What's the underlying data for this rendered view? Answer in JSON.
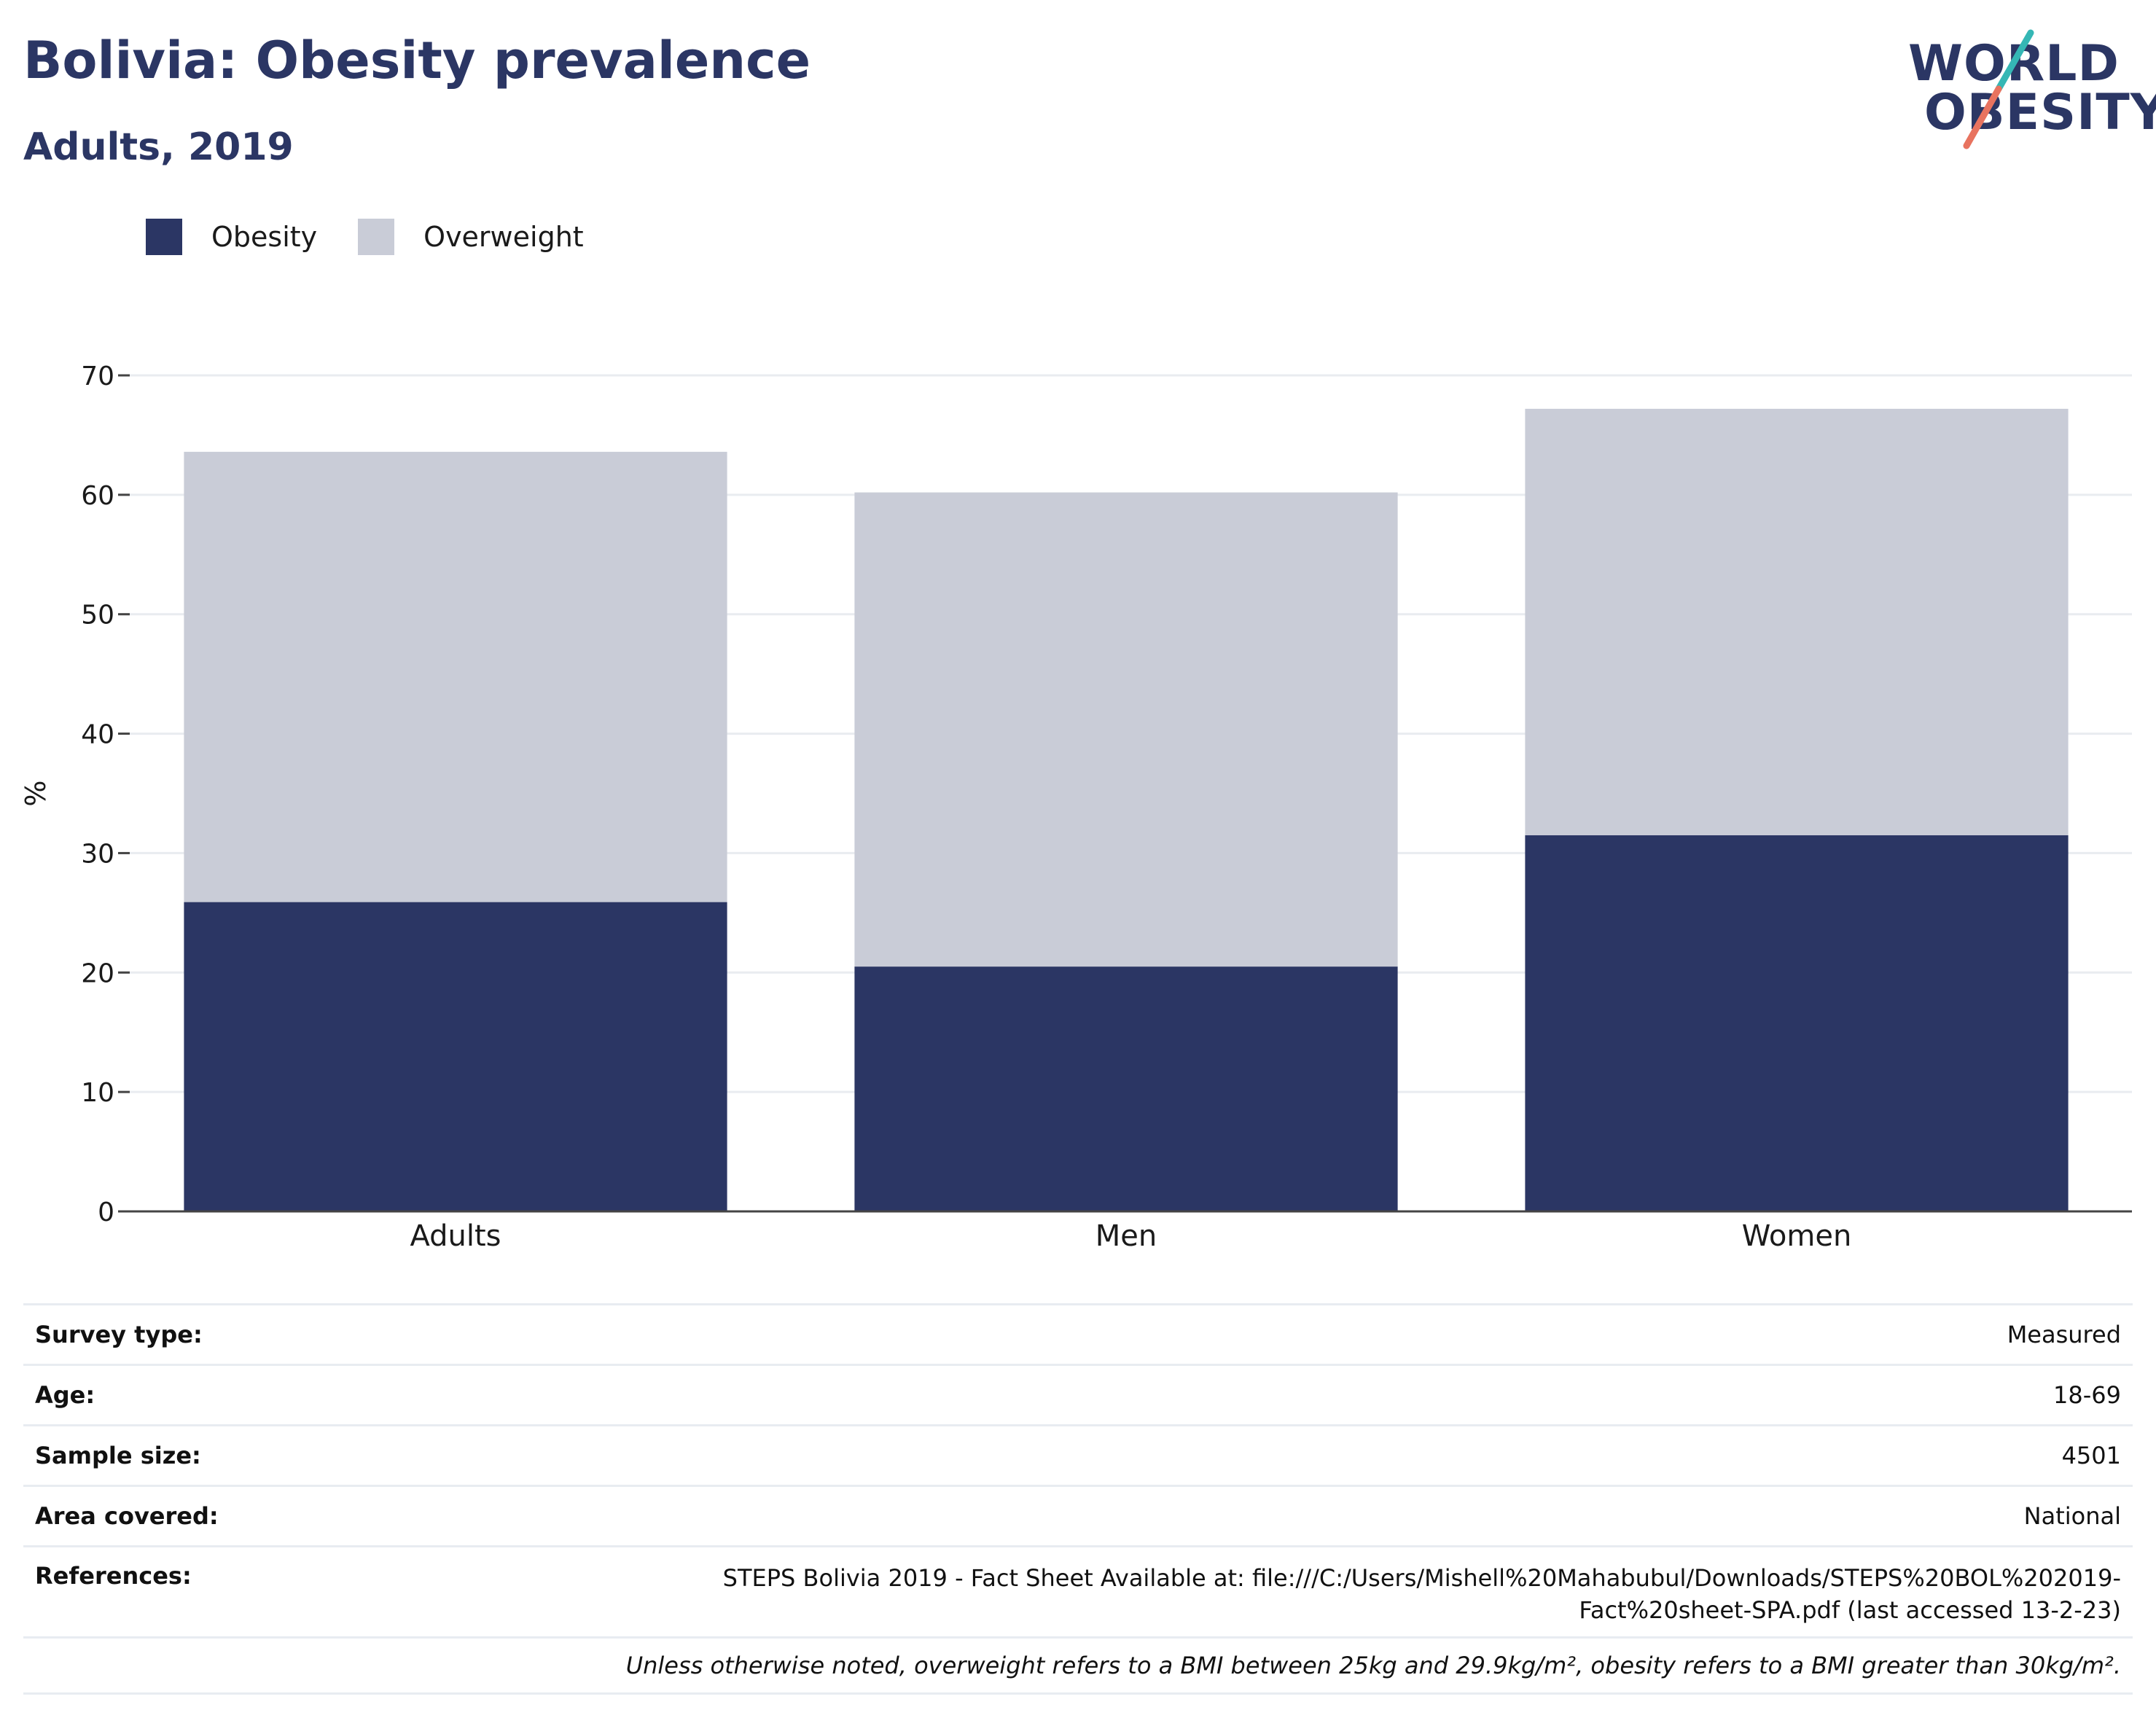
{
  "header": {
    "title": "Bolivia: Obesity prevalence",
    "subtitle": "Adults, 2019"
  },
  "logo": {
    "line1": "WORLD",
    "line2": "OBESITY",
    "accent_teal": "#35b7b5",
    "accent_coral": "#e8735f"
  },
  "legend": [
    {
      "label": "Obesity",
      "color": "#2b3664"
    },
    {
      "label": "Overweight",
      "color": "#c9ccd7"
    }
  ],
  "chart_data": {
    "type": "bar",
    "stacked": true,
    "categories": [
      "Adults",
      "Men",
      "Women"
    ],
    "series": [
      {
        "name": "Obesity",
        "values": [
          25.9,
          20.5,
          31.5
        ],
        "color": "#2b3664"
      },
      {
        "name": "Overweight",
        "values": [
          37.7,
          39.7,
          35.7
        ],
        "color": "#c9ccd7"
      }
    ],
    "ylabel": "%",
    "ylim": [
      0,
      70
    ],
    "yticks": [
      0,
      10,
      20,
      30,
      40,
      50,
      60,
      70
    ],
    "grid": true,
    "legend_position": "top-left"
  },
  "info": {
    "survey_type": {
      "label": "Survey type:",
      "value": "Measured"
    },
    "age": {
      "label": "Age:",
      "value": "18-69"
    },
    "sample_size": {
      "label": "Sample size:",
      "value": "4501"
    },
    "area_covered": {
      "label": "Area covered:",
      "value": "National"
    },
    "references": {
      "label": "References:",
      "line1": "STEPS Bolivia 2019 - Fact Sheet Available at: file:///C:/Users/Mishell%20Mahabubul/Downloads/STEPS%20BOL%202019-",
      "line2": "Fact%20sheet-SPA.pdf (last accessed 13-2-23)"
    },
    "note": "Unless otherwise noted, overweight refers to a BMI between 25kg and 29.9kg/m², obesity refers to a BMI greater than 30kg/m²."
  }
}
